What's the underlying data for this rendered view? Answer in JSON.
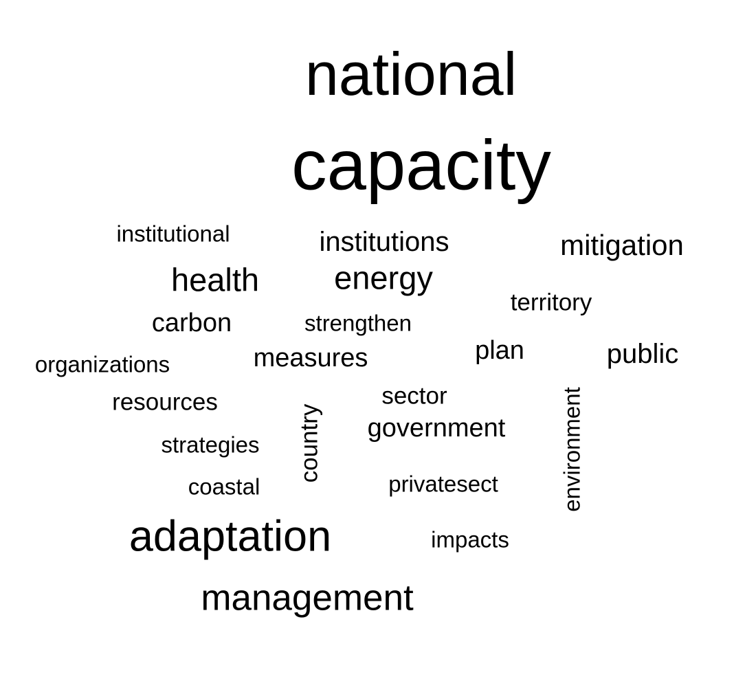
{
  "word_cloud": {
    "words": {
      "national": "national",
      "capacity": "capacity",
      "institutional": "institutional",
      "institutions": "institutions",
      "mitigation": "mitigation",
      "health": "health",
      "energy": "energy",
      "territory": "territory",
      "carbon": "carbon",
      "strengthen": "strengthen",
      "organizations": "organizations",
      "measures": "measures",
      "plan": "plan",
      "public": "public",
      "resources": "resources",
      "sector": "sector",
      "government": "government",
      "strategies": "strategies",
      "country": "country",
      "environment": "environment",
      "coastal": "coastal",
      "privatesect": "privatesect",
      "adaptation": "adaptation",
      "impacts": "impacts",
      "management": "management"
    },
    "text_color": "#000000",
    "background_color": "#ffffff"
  }
}
